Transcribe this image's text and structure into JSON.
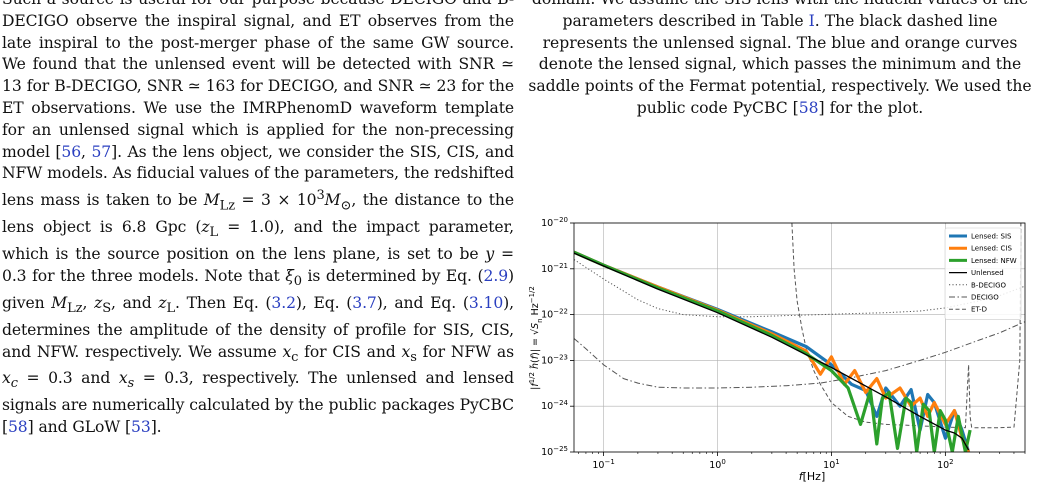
{
  "left_column": {
    "paragraph_html": "Such a source is useful for our purpose because DECIGO and B-DECIGO observe the inspiral signal, and ET observes from the late inspiral to the post-merger phase of the same GW source. We found that the unlensed event will be detected with SNR &#8771; 13 for B-DECIGO, SNR &#8771; 163 for DECIGO, and SNR &#8771; 23 for the ET observations. We use the IMRPhenomD waveform template for an unlensed signal which is applied for the non-precessing model [<span class=\"cite\">56</span>, <span class=\"cite\">57</span>]. As the lens object, we consider the SIS, CIS, and NFW models. As fiducial values of the parameters, the redshifted lens mass is taken to be <i>M</i><sub>Lz</sub> = 3 &times; 10<sup>3</sup><i>M</i><sub>&#8857;</sub>, the distance to the lens object is 6.8 Gpc (<i>z</i><sub>L</sub> = 1.0), and the impact parameter, which is the source position on the lens plane, is set to be <i>y</i> = 0.3 for the three models. Note that <i>&xi;</i><sub>0</sub> is determined by Eq. (<span class=\"cite\">2.9</span>) given <i>M</i><sub>Lz</sub>, <i>z</i><sub>S</sub>, and <i>z</i><sub>L</sub>. Then Eq. (<span class=\"cite\">3.2</span>), Eq. (<span class=\"cite\">3.7</span>), and Eq. (<span class=\"cite\">3.10</span>), determines the amplitude of the density of profile for SIS, CIS, and NFW. respectively. We assume <i>x</i><sub>c</sub> for CIS and <i>x</i><sub>s</sub> for NFW as <i>x<sub>c</sub></i> = 0.3 and <i>x<sub>s</sub></i> = 0.3, respectively. The unlensed and lensed signals are numerically calculated by the public packages PyCBC [<span class=\"cite\">58</span>] and GLoW [<span class=\"cite\">53</span>]."
  },
  "caption": {
    "html": "domain. We assume the SIS lens with the fiducial values of the parameters described in Table <span class=\"cite\">I</span>. The black dashed line represents the unlensed signal. The blue and orange curves denote the lensed signal, which passes the minimum and the saddle points of the Fermat potential, respectively. We used the public code PyCBC [<span class=\"cite\">58</span>] for the plot."
  },
  "chart_data": {
    "type": "line",
    "xscale": "log",
    "yscale": "log",
    "xlim": [
      0.055,
      500
    ],
    "ylim": [
      1e-25,
      1e-20
    ],
    "grid": true,
    "legend_placement": "top-right",
    "xlabel": "f[Hz]",
    "ylabel": "|f^{1/2} h̃(f)| = √S_n Hz^{-1/2}",
    "x_ticks": [
      "10^-1",
      "10^0",
      "10^1",
      "10^2"
    ],
    "y_ticks": [
      "10^-25",
      "10^-24",
      "10^-23",
      "10^-22",
      "10^-21",
      "10^-20"
    ],
    "series": [
      {
        "name": "Lensed: SIS",
        "color": "#1f77b4",
        "style": "solid-thick",
        "x": [
          0.055,
          0.1,
          0.3,
          1,
          3,
          6,
          10,
          15,
          20,
          25,
          30,
          40,
          50,
          60,
          70,
          80,
          100,
          120,
          140,
          160
        ],
        "y": [
          2.3e-21,
          1.2e-21,
          4e-22,
          1.3e-22,
          4.2e-23,
          2e-23,
          8e-24,
          3e-24,
          2.2e-24,
          6e-25,
          2.5e-24,
          1e-24,
          2.3e-24,
          3e-25,
          1.8e-24,
          1.2e-24,
          2e-25,
          8e-25,
          3e-25,
          1e-25
        ]
      },
      {
        "name": "Lensed: CIS",
        "color": "#ff7f0e",
        "style": "solid-thick",
        "x": [
          0.055,
          0.1,
          0.3,
          1,
          3,
          6,
          8,
          10,
          13,
          16,
          20,
          25,
          30,
          40,
          50,
          60,
          70,
          80,
          100,
          120,
          140,
          160
        ],
        "y": [
          2.3e-21,
          1.2e-21,
          4e-22,
          1.25e-22,
          3.8e-23,
          1.6e-23,
          5e-24,
          1.2e-23,
          3e-24,
          6e-24,
          2e-24,
          4e-24,
          1.5e-24,
          2.5e-24,
          1e-24,
          1.5e-24,
          6e-25,
          1.2e-24,
          4e-25,
          8e-25,
          2e-25,
          1e-25
        ]
      },
      {
        "name": "Lensed: NFW",
        "color": "#2ca02c",
        "style": "solid-thick",
        "x": [
          0.055,
          0.1,
          0.3,
          1,
          3,
          6,
          10,
          14,
          18,
          22,
          25,
          28,
          32,
          38,
          45,
          50,
          56,
          64,
          72,
          80,
          90,
          100,
          115,
          130,
          150,
          165
        ],
        "y": [
          2.3e-21,
          1.2e-21,
          3.8e-22,
          1.2e-22,
          3.5e-23,
          1.4e-23,
          6e-24,
          2.5e-24,
          4e-25,
          2.2e-24,
          1.5e-25,
          1.5e-24,
          2e-24,
          1.2e-25,
          1.5e-24,
          1.2e-24,
          1e-25,
          1.1e-24,
          8e-25,
          1e-25,
          8e-25,
          5e-25,
          1e-25,
          6e-25,
          1e-25,
          3e-25
        ]
      },
      {
        "name": "Unlensed",
        "color": "#000000",
        "style": "solid-thin",
        "x": [
          0.055,
          0.1,
          0.3,
          1,
          3,
          10,
          30,
          60,
          100,
          120,
          140,
          160
        ],
        "y": [
          2.2e-21,
          1.15e-21,
          3.6e-22,
          1.1e-22,
          3.2e-23,
          7e-24,
          1.6e-24,
          6e-25,
          3e-25,
          2.6e-25,
          2e-25,
          1.1e-25
        ]
      },
      {
        "name": "B-DECIGO",
        "color": "#555555",
        "style": "dotted",
        "x": [
          0.055,
          0.1,
          0.2,
          0.3,
          0.5,
          1,
          2,
          4,
          8,
          15,
          30,
          60,
          100,
          200,
          300,
          400,
          500
        ],
        "y": [
          1.6e-21,
          6e-22,
          2.1e-22,
          1.35e-22,
          1e-22,
          9e-23,
          9e-23,
          9.5e-23,
          1e-22,
          1.05e-22,
          1.1e-22,
          1.2e-22,
          1.4e-22,
          2e-22,
          2.6e-22,
          3.4e-22,
          4.2e-22
        ]
      },
      {
        "name": "DECIGO",
        "color": "#555555",
        "style": "dashdot",
        "x": [
          0.055,
          0.07,
          0.1,
          0.15,
          0.2,
          0.3,
          0.5,
          1,
          2,
          4,
          8,
          15,
          30,
          60,
          100,
          200,
          300,
          400,
          500
        ],
        "y": [
          3e-23,
          1.8e-23,
          8e-24,
          4e-24,
          3.2e-24,
          2.6e-24,
          2.5e-24,
          2.5e-24,
          2.6e-24,
          2.8e-24,
          3.2e-24,
          4.2e-24,
          6e-24,
          1e-23,
          1.5e-23,
          2.8e-23,
          4e-23,
          5.5e-23,
          7e-23
        ]
      },
      {
        "name": "ET-D",
        "color": "#555555",
        "style": "dashed",
        "x": [
          4.5,
          4.7,
          5,
          5.5,
          6,
          7,
          8,
          10,
          14,
          20,
          30,
          50,
          100,
          150,
          160,
          165,
          170,
          175,
          300,
          400,
          450,
          460
        ],
        "y": [
          1e-20,
          1e-21,
          2e-22,
          5e-23,
          1.8e-23,
          6e-24,
          3e-24,
          1.2e-24,
          6e-25,
          4.5e-25,
          4e-25,
          3.8e-25,
          3.5e-25,
          3.4e-25,
          8e-24,
          6e-25,
          3.5e-25,
          3.4e-25,
          3.4e-25,
          3.5e-25,
          1e-23,
          1e-20
        ]
      }
    ]
  }
}
